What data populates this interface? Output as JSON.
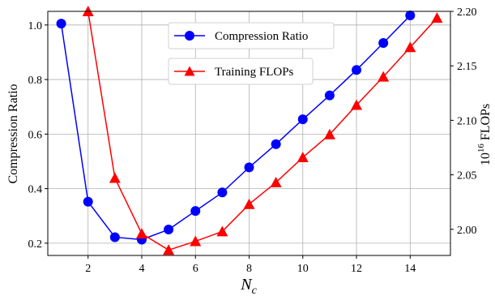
{
  "chart_data": {
    "type": "line",
    "xlabel_base": "N",
    "xlabel_sub": "c",
    "ylabel_left": "Compression Ratio",
    "ylabel_right_base": "10",
    "ylabel_right_exp": "16",
    "ylabel_right_unit": "FLOPs",
    "xlim": [
      0.5,
      15.5
    ],
    "ylim_left": [
      0.155,
      1.05
    ],
    "ylim_right": [
      1.976,
      2.2
    ],
    "x_ticks": [
      2,
      4,
      6,
      8,
      10,
      12,
      14
    ],
    "y_ticks_left": [
      0.2,
      0.4,
      0.6,
      0.8,
      1.0
    ],
    "y_ticks_left_labels": [
      "0.2",
      "0.4",
      "0.6",
      "0.8",
      "1.0"
    ],
    "y_ticks_right": [
      2.0,
      2.05,
      2.1,
      2.15,
      2.2
    ],
    "y_ticks_right_labels": [
      "2.00",
      "2.05",
      "2.10",
      "2.15",
      "2.20"
    ],
    "grid": true,
    "series": [
      {
        "name": "Compression Ratio",
        "axis": "left",
        "color": "#0000ff",
        "marker": "circle",
        "x": [
          1,
          2,
          3,
          4,
          5,
          6,
          7,
          8,
          9,
          10,
          11,
          12,
          13,
          14
        ],
        "y": [
          1.005,
          0.352,
          0.222,
          0.213,
          0.25,
          0.318,
          0.386,
          0.478,
          0.563,
          0.654,
          0.742,
          0.835,
          0.934,
          1.035
        ]
      },
      {
        "name": "Training FLOPs",
        "axis": "right",
        "color": "#ff0000",
        "marker": "triangle",
        "x": [
          2,
          3,
          4,
          5,
          6,
          7,
          8,
          9,
          10,
          11,
          12,
          13,
          14,
          15
        ],
        "y": [
          2.2,
          2.047,
          1.996,
          1.981,
          1.989,
          1.998,
          2.023,
          2.043,
          2.066,
          2.087,
          2.114,
          2.14,
          2.167,
          2.194
        ]
      }
    ]
  }
}
